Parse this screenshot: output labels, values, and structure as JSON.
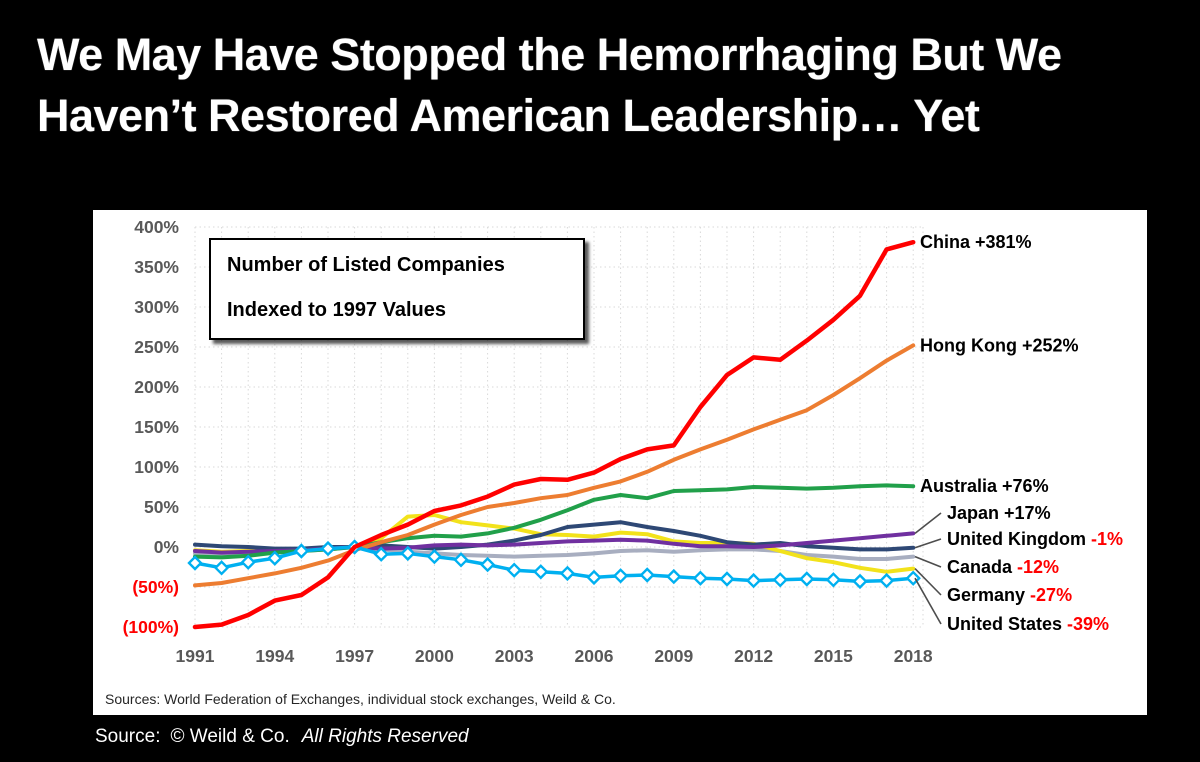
{
  "title": {
    "line1": "We May Have Stopped the Hemorrhaging But We",
    "line2": "Haven’t Restored American Leadership… Yet"
  },
  "note_box": {
    "line1": "Number of Listed Companies",
    "line2": "Indexed to 1997 Values"
  },
  "sources_note": "Sources: World Federation of Exchanges, individual stock exchanges, Weild & Co.",
  "footer": {
    "source_prefix": "Source:",
    "source_owner": "© Weild & Co.",
    "source_rights": "All Rights Reserved"
  },
  "colors": {
    "axis_text": "#595959",
    "negative_text": "#FF0000",
    "grid": "#D9D9D9",
    "leader_line": "#4d4d4d",
    "label_text": "#000000"
  },
  "chart_data": {
    "type": "line",
    "title": "Number of Listed Companies Indexed to 1997 Values",
    "years": [
      1991,
      1992,
      1993,
      1994,
      1995,
      1996,
      1997,
      1998,
      1999,
      2000,
      2001,
      2002,
      2003,
      2004,
      2005,
      2006,
      2007,
      2008,
      2009,
      2010,
      2011,
      2012,
      2013,
      2014,
      2015,
      2016,
      2017,
      2018
    ],
    "x_ticks": [
      1991,
      1994,
      1997,
      2000,
      2003,
      2006,
      2009,
      2012,
      2015,
      2018
    ],
    "ylim": [
      -100,
      400
    ],
    "grid": true,
    "y_ticks": [
      {
        "label": "400%",
        "value": 400,
        "negative": false
      },
      {
        "label": "350%",
        "value": 350,
        "negative": false
      },
      {
        "label": "300%",
        "value": 300,
        "negative": false
      },
      {
        "label": "250%",
        "value": 250,
        "negative": false
      },
      {
        "label": "200%",
        "value": 200,
        "negative": false
      },
      {
        "label": "150%",
        "value": 150,
        "negative": false
      },
      {
        "label": "100%",
        "value": 100,
        "negative": false
      },
      {
        "label": "50%",
        "value": 50,
        "negative": false
      },
      {
        "label": "0%",
        "value": 0,
        "negative": false
      },
      {
        "label": "(50%)",
        "value": -50,
        "negative": true
      },
      {
        "label": "(100%)",
        "value": -100,
        "negative": true
      }
    ],
    "series": [
      {
        "name": "China",
        "color": "#FF0000",
        "end_label": "+381%",
        "end_label_negative": false,
        "marker": "none",
        "values": [
          -100,
          -97,
          -85,
          -67,
          -60,
          -38,
          0,
          15,
          28,
          45,
          52,
          63,
          78,
          85,
          84,
          93,
          110,
          122,
          127,
          175,
          215,
          237,
          234,
          258,
          284,
          314,
          372,
          381
        ]
      },
      {
        "name": "Hong Kong",
        "color": "#ED7D31",
        "end_label": "+252%",
        "end_label_negative": false,
        "marker": "none",
        "values": [
          -48,
          -45,
          -39,
          -33,
          -26,
          -17,
          -4,
          6,
          15,
          28,
          40,
          50,
          55,
          61,
          65,
          74,
          82,
          94,
          109,
          122,
          134,
          147,
          159,
          171,
          190,
          211,
          233,
          252
        ]
      },
      {
        "name": "Australia",
        "color": "#21A04A",
        "end_label": "+76%",
        "end_label_negative": false,
        "marker": "none",
        "values": [
          -12,
          -13,
          -11,
          -7,
          -5,
          -3,
          0,
          6,
          11,
          14,
          13,
          17,
          24,
          34,
          46,
          59,
          65,
          61,
          70,
          71,
          72,
          75,
          74,
          73,
          74,
          76,
          77,
          76
        ]
      },
      {
        "name": "Japan",
        "color": "#7030A0",
        "end_label": "+17%",
        "end_label_negative": false,
        "marker": "none",
        "values": [
          -5,
          -7,
          -6,
          -5,
          -4,
          -2,
          0,
          -2,
          -1,
          2,
          3,
          2,
          3,
          5,
          7,
          8,
          9,
          8,
          4,
          1,
          1,
          0,
          2,
          5,
          8,
          11,
          14,
          17
        ]
      },
      {
        "name": "United Kingdom",
        "color": "#2E4875",
        "end_label": "-1%",
        "end_label_negative": true,
        "marker": "none",
        "values": [
          3,
          1,
          0,
          -2,
          -2,
          0,
          0,
          2,
          0,
          -2,
          0,
          3,
          8,
          15,
          25,
          28,
          31,
          25,
          20,
          14,
          6,
          3,
          5,
          1,
          -1,
          -3,
          -3,
          -1
        ]
      },
      {
        "name": "Canada",
        "color": "#A8AEC0",
        "end_label": "-12%",
        "end_label_negative": true,
        "marker": "none",
        "values": [
          -8,
          -9,
          -8,
          -6,
          -5,
          -3,
          0,
          -3,
          -6,
          -8,
          -10,
          -11,
          -12,
          -11,
          -10,
          -8,
          -5,
          -4,
          -6,
          -4,
          -3,
          -3,
          -5,
          -10,
          -12,
          -15,
          -15,
          -12
        ]
      },
      {
        "name": "Germany",
        "color": "#F2E21B",
        "end_label": "-27%",
        "end_label_negative": true,
        "marker": "none",
        "values": [
          -4,
          -6,
          -5,
          -4,
          -4,
          -2,
          0,
          11,
          38,
          40,
          31,
          27,
          23,
          16,
          15,
          13,
          18,
          16,
          7,
          5,
          5,
          4,
          -5,
          -14,
          -19,
          -26,
          -31,
          -27
        ]
      },
      {
        "name": "United States",
        "color": "#00B0F0",
        "end_label": "-39%",
        "end_label_negative": true,
        "marker": "diamond",
        "values": [
          -20,
          -26,
          -19,
          -14,
          -5,
          -2,
          0,
          -9,
          -8,
          -12,
          -16,
          -22,
          -29,
          -31,
          -33,
          -38,
          -36,
          -35,
          -37,
          -39,
          -40,
          -42,
          -41,
          -40,
          -41,
          -43,
          -42,
          -39
        ]
      }
    ]
  }
}
